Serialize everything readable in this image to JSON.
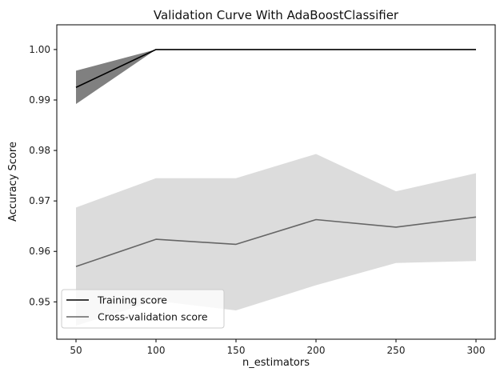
{
  "chart_data": {
    "type": "line",
    "title": "Validation Curve With AdaBoostClassifier",
    "xlabel": "n_estimators",
    "ylabel": "Accuracy Score",
    "xlim": [
      38,
      312
    ],
    "ylim": [
      0.9426,
      1.0049
    ],
    "x_ticks": [
      50,
      100,
      150,
      200,
      250,
      300
    ],
    "y_ticks": [
      0.95,
      0.96,
      0.97,
      0.98,
      0.99,
      1.0
    ],
    "y_tick_labels": [
      "0.95",
      "0.96",
      "0.97",
      "0.98",
      "0.99",
      "1.00"
    ],
    "grid": false,
    "legend_position": "lower-left",
    "x": [
      50,
      100,
      150,
      200,
      250,
      300
    ],
    "series": [
      {
        "name": "Training score",
        "color": "#000000",
        "band_color": "#808080",
        "values": [
          0.9925,
          1.0,
          1.0,
          1.0,
          1.0,
          1.0
        ],
        "band_lower": [
          0.9892,
          1.0,
          1.0,
          1.0,
          1.0,
          1.0
        ],
        "band_upper": [
          0.9958,
          1.0,
          1.0,
          1.0,
          1.0,
          1.0
        ]
      },
      {
        "name": "Cross-validation score",
        "color": "#666666",
        "band_color": "#dcdcdc",
        "values": [
          0.957,
          0.9624,
          0.9614,
          0.9663,
          0.9648,
          0.9668
        ],
        "band_lower": [
          0.9453,
          0.9502,
          0.9483,
          0.9533,
          0.9577,
          0.9581
        ],
        "band_upper": [
          0.9687,
          0.9745,
          0.9745,
          0.9793,
          0.9719,
          0.9755
        ]
      }
    ]
  }
}
